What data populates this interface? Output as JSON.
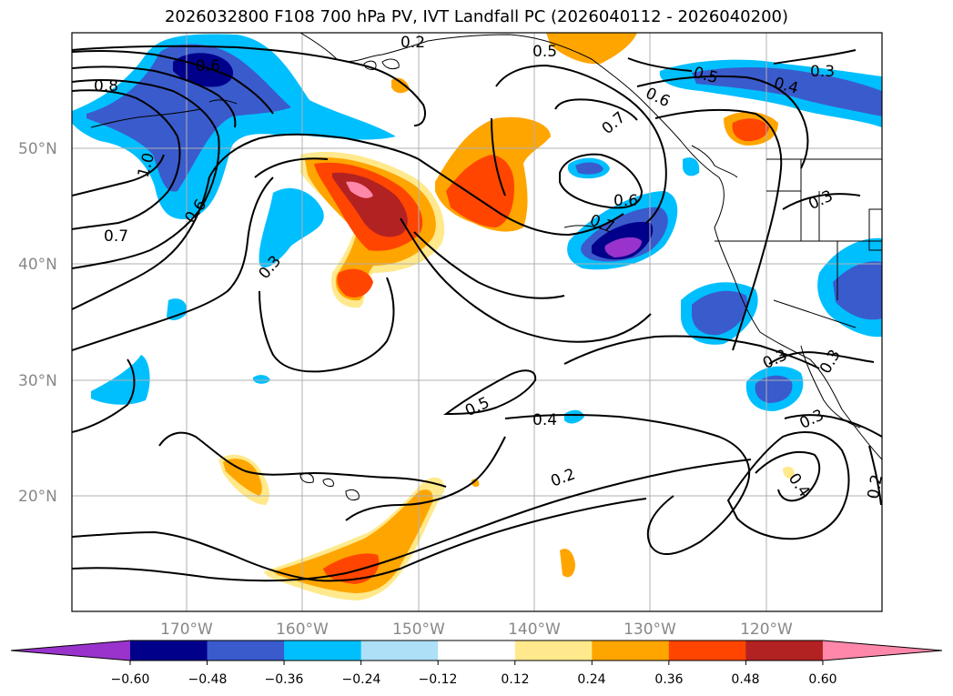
{
  "title": "2026032800 F108 700 hPa PV, IVT Landfall PC (2026040112 - 2026040200)",
  "lat_labels": [
    "50°N",
    "40°N",
    "30°N",
    "20°N"
  ],
  "lon_labels": [
    "170°W",
    "160°W",
    "150°W",
    "140°W",
    "130°W",
    "120°W"
  ],
  "colorbar": {
    "ticks": [
      "−0.60",
      "−0.48",
      "−0.36",
      "−0.24",
      "−0.12",
      "0.12",
      "0.24",
      "0.36",
      "0.48",
      "0.60"
    ],
    "colors": [
      "#9933cc",
      "#00008b",
      "#3a5bcc",
      "#00bfff",
      "#aee0f7",
      "#ffffff",
      "#ffe98c",
      "#ffa500",
      "#ff4500",
      "#b22222",
      "#ff88aa"
    ]
  },
  "contour_labels": [
    "0.8",
    "1.0",
    "0.6",
    "0.7",
    "0.6",
    "0.3",
    "0.5",
    "0.5",
    "0.3",
    "0.4",
    "0.6",
    "0.7",
    "0.6",
    "0.7",
    "0.3",
    "0.3",
    "0.5",
    "0.4",
    "0.2",
    "0.3",
    "0.2",
    "0.3",
    "0.4",
    "0.2"
  ],
  "map": {
    "extent_lon": [
      "180°W",
      "110°W"
    ],
    "extent_lat": [
      "10°N",
      "60°N"
    ],
    "gridlines": true
  }
}
